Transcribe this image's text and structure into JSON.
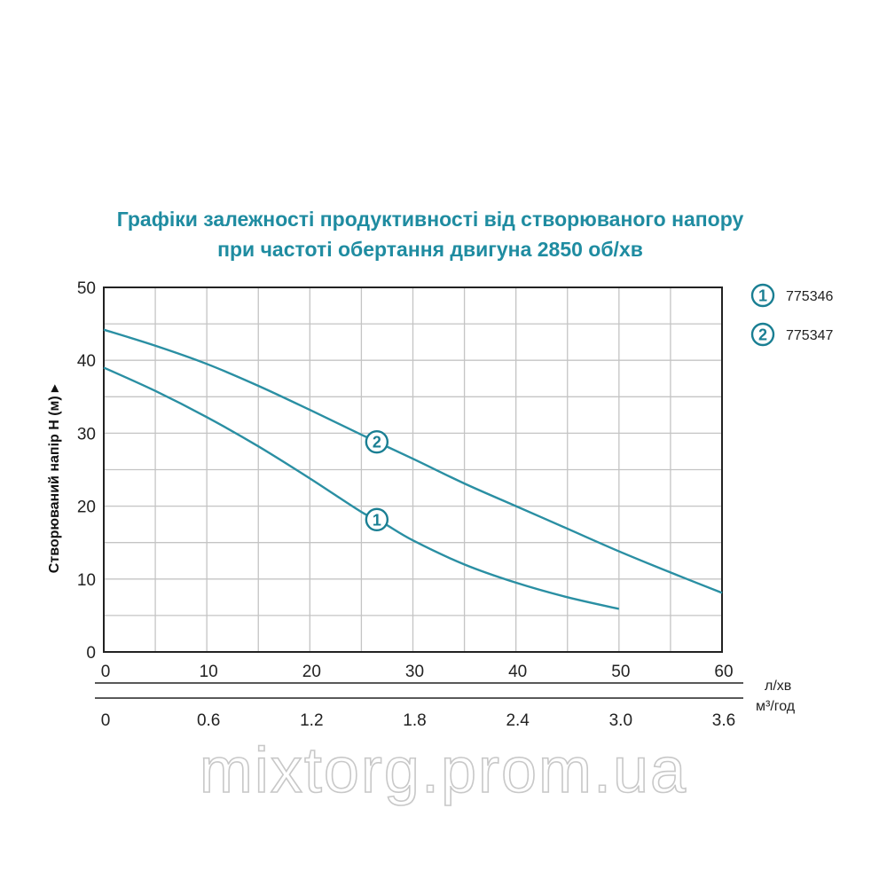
{
  "chart_data": {
    "type": "line",
    "title": [
      "Графіки залежності продуктивності від створюваного напору",
      "при частоті обертання двигуна 2850 об/хв"
    ],
    "ylabel": "Створюваний напір Н (м) ▸",
    "xunit_primary": "л/хв",
    "xunit_secondary": "м³/год",
    "x_ticks": [
      "0",
      "10",
      "20",
      "30",
      "40",
      "50",
      "60"
    ],
    "x2_ticks": [
      "0",
      "0.6",
      "1.2",
      "1.8",
      "2.4",
      "3.0",
      "3.6"
    ],
    "y_ticks": [
      "0",
      "10",
      "20",
      "30",
      "40",
      "50"
    ],
    "xlim": [
      0,
      60
    ],
    "ylim": [
      0,
      50
    ],
    "grid": true,
    "series": [
      {
        "name": "775346",
        "marker_label": "1",
        "marker_x": 26.5,
        "x": [
          0,
          5,
          10,
          15,
          20,
          25,
          27,
          30,
          35,
          40,
          45,
          50
        ],
        "y": [
          39,
          35.8,
          32.2,
          28.2,
          23.8,
          19.2,
          17.8,
          15.3,
          12,
          9.5,
          7.5,
          5.9
        ]
      },
      {
        "name": "775347",
        "marker_label": "2",
        "marker_x": 26.5,
        "x": [
          0,
          5,
          10,
          15,
          20,
          25,
          30,
          35,
          40,
          45,
          50,
          55,
          60
        ],
        "y": [
          44.2,
          42,
          39.5,
          36.5,
          33.2,
          29.8,
          26.5,
          23.1,
          20,
          16.9,
          13.8,
          10.9,
          8.1
        ]
      }
    ],
    "legend": [
      {
        "label": "1",
        "text": "775346"
      },
      {
        "label": "2",
        "text": "775347"
      }
    ],
    "legend_position": "top-right",
    "watermark": "mixtorg.prom.ua",
    "colors": {
      "line": "#2a8fa3",
      "marker": "#1a7f93",
      "title": "#1f8ca1",
      "grid": "#c4c4c4"
    }
  }
}
